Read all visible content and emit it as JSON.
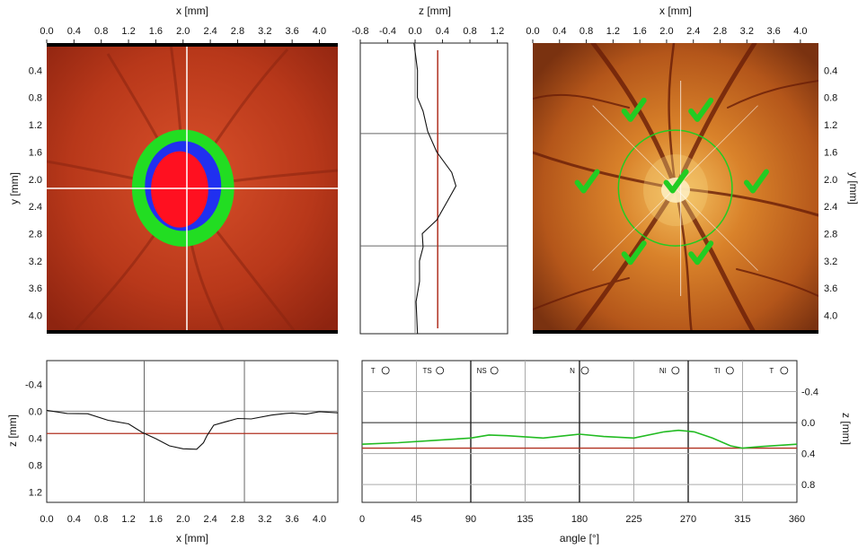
{
  "chart_data": [
    {
      "panel": "enface-map",
      "type": "heatmap",
      "x_axis": {
        "label": "x [mm]",
        "ticks": [
          "0.0",
          "0.4",
          "0.8",
          "1.2",
          "1.6",
          "2.0",
          "2.4",
          "2.8",
          "3.2",
          "3.6",
          "4.0"
        ],
        "range": [
          0,
          4.27
        ]
      },
      "y_axis": {
        "label": "y [mm]",
        "ticks": [
          "0.4",
          "0.8",
          "1.2",
          "1.6",
          "2.0",
          "2.4",
          "2.8",
          "3.2",
          "3.6",
          "4.0"
        ],
        "range": [
          0,
          4.27
        ],
        "inverted": true
      },
      "cursor": {
        "x": 2.04,
        "y": 2.13
      },
      "regions": [
        {
          "name": "rim",
          "color": "#22dd22",
          "center": [
            2.0,
            2.13
          ],
          "radius": [
            0.75,
            0.86
          ]
        },
        {
          "name": "cup",
          "color": "#2030f0",
          "center": [
            2.0,
            2.1
          ],
          "radius": [
            0.56,
            0.66
          ]
        },
        {
          "name": "cup_core",
          "color": "#ff1020",
          "center": [
            1.95,
            2.15
          ],
          "radius": [
            0.42,
            0.56
          ]
        }
      ],
      "background_color": "#b8351a"
    },
    {
      "panel": "vertical-profile",
      "type": "line",
      "x_axis": {
        "label": "z [mm]",
        "ticks": [
          "-0.8",
          "-0.4",
          "0.0",
          "0.4",
          "0.8",
          "1.2"
        ],
        "range": [
          -0.8,
          1.35
        ]
      },
      "y_range": [
        0,
        4.27
      ],
      "reference_z": 0.33,
      "cursor_y": [
        1.33,
        2.98
      ],
      "series": [
        {
          "y": [
            0.0,
            0.4,
            0.8,
            1.0,
            1.3,
            1.6,
            1.9,
            2.1,
            2.3,
            2.6,
            2.8,
            3.0,
            3.2,
            3.5,
            3.8,
            4.27
          ],
          "z": [
            0.0,
            0.02,
            0.05,
            0.1,
            0.2,
            0.3,
            0.55,
            0.58,
            0.5,
            0.3,
            0.12,
            0.1,
            0.08,
            0.05,
            0.03,
            0.02
          ]
        }
      ]
    },
    {
      "panel": "fundus-image",
      "type": "heatmap",
      "x_axis": {
        "label": "x [mm]",
        "ticks": [
          "0.0",
          "0.4",
          "0.8",
          "1.2",
          "1.6",
          "2.0",
          "2.4",
          "2.8",
          "3.2",
          "3.6",
          "4.0"
        ]
      },
      "y_axis": {
        "label": "y [mm]",
        "ticks": [
          "0.4",
          "0.8",
          "1.2",
          "1.6",
          "2.0",
          "2.4",
          "2.8",
          "3.2",
          "3.6",
          "4.0"
        ],
        "position": "right"
      },
      "disc_center": [
        2.13,
        2.13
      ],
      "disc_radius_mm": 0.85,
      "check_marks": [
        [
          1.5,
          1.0
        ],
        [
          2.5,
          1.0
        ],
        [
          0.8,
          2.05
        ],
        [
          2.13,
          2.05
        ],
        [
          3.33,
          2.05
        ],
        [
          1.5,
          3.1
        ],
        [
          2.5,
          3.1
        ]
      ],
      "background_color": "#c86418",
      "check_color": "#22cc22"
    },
    {
      "panel": "horizontal-profile",
      "type": "line",
      "x_axis": {
        "label": "x [mm]",
        "ticks": [
          "0.0",
          "0.4",
          "0.8",
          "1.2",
          "1.6",
          "2.0",
          "2.4",
          "2.8",
          "3.2",
          "3.6",
          "4.0"
        ],
        "range": [
          0,
          4.27
        ]
      },
      "y_axis": {
        "label": "z [mm]",
        "ticks": [
          "-0.4",
          "0.0",
          "0.4",
          "0.8",
          "1.2"
        ],
        "range": [
          -0.75,
          1.35
        ],
        "inverted": true
      },
      "reference_z": 0.33,
      "cursor_x": [
        1.43,
        2.9
      ],
      "series": [
        {
          "x": [
            0.0,
            0.3,
            0.6,
            0.9,
            1.2,
            1.4,
            1.6,
            1.8,
            2.0,
            2.2,
            2.3,
            2.35,
            2.45,
            2.6,
            2.8,
            3.0,
            3.3,
            3.5,
            3.6,
            3.8,
            4.0,
            4.27
          ],
          "z": [
            0.0,
            0.02,
            0.05,
            0.12,
            0.2,
            0.3,
            0.42,
            0.5,
            0.57,
            0.55,
            0.48,
            0.35,
            0.22,
            0.15,
            0.12,
            0.1,
            0.07,
            0.02,
            0.04,
            0.03,
            0.02,
            0.01
          ]
        }
      ]
    },
    {
      "panel": "circular-profile",
      "type": "line",
      "x_axis": {
        "label": "angle [°]",
        "ticks": [
          "0",
          "45",
          "90",
          "135",
          "180",
          "225",
          "270",
          "315",
          "360"
        ],
        "range": [
          0,
          360
        ]
      },
      "y_axis": {
        "label": "z [mm]",
        "ticks": [
          "-0.4",
          "0.0",
          "0.4",
          "0.8"
        ],
        "range": [
          -0.8,
          1.03
        ],
        "inverted": true,
        "position": "right"
      },
      "reference_z": 0.33,
      "sector_labels": [
        "T",
        "TS",
        "NS",
        "N",
        "NI",
        "TI",
        "T"
      ],
      "sector_label_angles": [
        15,
        60,
        105,
        180,
        255,
        300,
        345
      ],
      "sector_bounds": [
        90,
        180,
        270
      ],
      "line_color": "#22bb22",
      "series": [
        {
          "angle": [
            0,
            30,
            60,
            90,
            105,
            120,
            150,
            180,
            200,
            225,
            250,
            262,
            275,
            290,
            305,
            315,
            330,
            360
          ],
          "z": [
            0.28,
            0.26,
            0.23,
            0.2,
            0.16,
            0.17,
            0.2,
            0.15,
            0.18,
            0.2,
            0.12,
            0.1,
            0.12,
            0.2,
            0.3,
            0.33,
            0.31,
            0.28
          ]
        }
      ]
    }
  ]
}
